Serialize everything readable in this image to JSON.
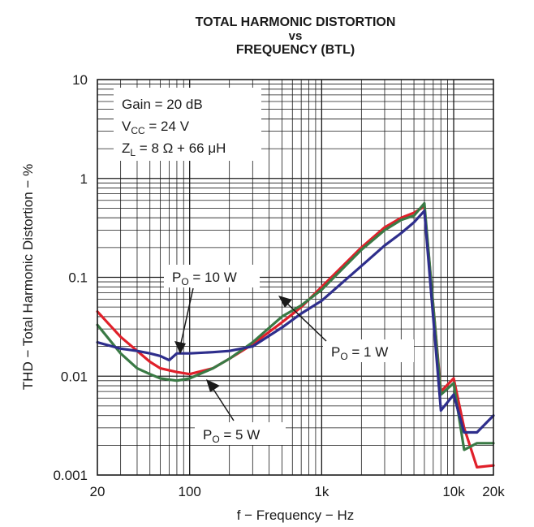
{
  "chart_data": {
    "type": "line",
    "title_lines": [
      "TOTAL HARMONIC DISTORTION",
      "vs",
      "FREQUENCY (BTL)"
    ],
    "xlabel": "f − Frequency − Hz",
    "ylabel": "THD − Total Harmonic Distortion − %",
    "x_scale": "log",
    "y_scale": "log",
    "xlim": [
      20,
      20000
    ],
    "ylim": [
      0.001,
      10
    ],
    "x_tick_labels": [
      "20",
      "100",
      "1k",
      "10k",
      "20k"
    ],
    "x_tick_values": [
      20,
      100,
      1000,
      10000,
      20000
    ],
    "y_tick_labels": [
      "10",
      "1",
      "0.1",
      "0.01",
      "0.001"
    ],
    "y_tick_values": [
      10,
      1,
      0.1,
      0.01,
      0.001
    ],
    "grid": true,
    "conditions": {
      "gain": "Gain = 20 dB",
      "vcc_main": "V",
      "vcc_sub": "CC",
      "vcc_rest": " = 24 V",
      "zl_main": "Z",
      "zl_sub": "L",
      "zl_rest": " = 8 Ω + 66 μH"
    },
    "annotations": [
      {
        "main": "P",
        "sub": "O",
        "rest": " = 10 W"
      },
      {
        "main": "P",
        "sub": "O",
        "rest": " = 5 W"
      },
      {
        "main": "P",
        "sub": "O",
        "rest": " = 1 W"
      }
    ],
    "series": [
      {
        "color": "#e0202a",
        "x": [
          20,
          30,
          40,
          50,
          60,
          80,
          100,
          150,
          200,
          300,
          500,
          700,
          1000,
          2000,
          3000,
          4000,
          5000,
          6000,
          8000,
          10000,
          12000,
          15000,
          20000
        ],
        "y": [
          0.045,
          0.025,
          0.018,
          0.014,
          0.012,
          0.011,
          0.0105,
          0.012,
          0.015,
          0.021,
          0.035,
          0.05,
          0.08,
          0.2,
          0.32,
          0.4,
          0.45,
          0.52,
          0.007,
          0.0095,
          0.003,
          0.0012,
          0.00125
        ]
      },
      {
        "color": "#3a7a45",
        "x": [
          20,
          30,
          40,
          50,
          60,
          80,
          100,
          150,
          200,
          300,
          500,
          700,
          1000,
          2000,
          3000,
          4000,
          5000,
          6000,
          8000,
          10000,
          12000,
          15000,
          20000
        ],
        "y": [
          0.033,
          0.017,
          0.012,
          0.0105,
          0.0095,
          0.009,
          0.0095,
          0.012,
          0.015,
          0.022,
          0.04,
          0.052,
          0.075,
          0.19,
          0.3,
          0.38,
          0.42,
          0.56,
          0.0065,
          0.0085,
          0.0018,
          0.0021,
          0.0021
        ]
      },
      {
        "color": "#2e2e8c",
        "x": [
          20,
          30,
          40,
          50,
          60,
          70,
          80,
          100,
          150,
          200,
          300,
          500,
          700,
          1000,
          2000,
          3000,
          4000,
          5000,
          6000,
          8000,
          10000,
          12000,
          15000,
          20000
        ],
        "y": [
          0.022,
          0.019,
          0.018,
          0.017,
          0.016,
          0.0145,
          0.017,
          0.017,
          0.0175,
          0.018,
          0.02,
          0.031,
          0.043,
          0.058,
          0.13,
          0.21,
          0.28,
          0.36,
          0.47,
          0.0045,
          0.0065,
          0.0027,
          0.0027,
          0.004
        ]
      }
    ]
  }
}
